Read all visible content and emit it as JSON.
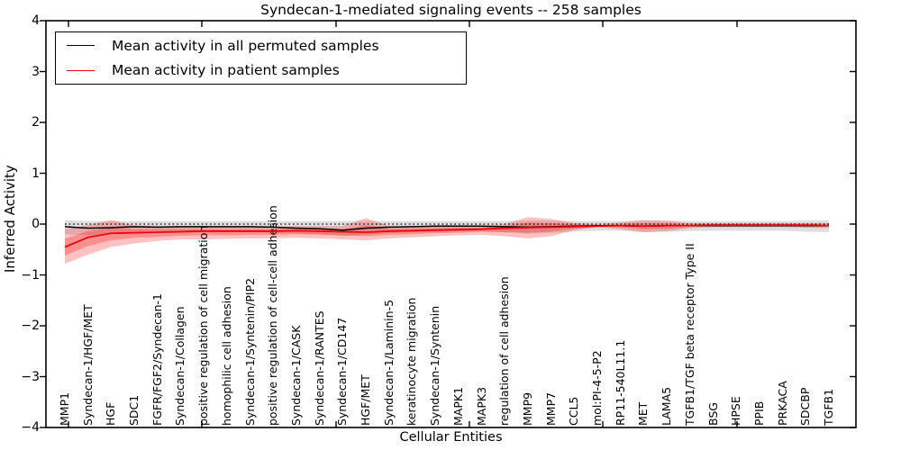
{
  "title": "Syndecan-1-mediated signaling events -- 258 samples",
  "legend": {
    "items": [
      {
        "label": "Mean activity in all permuted samples",
        "color": "#000000"
      },
      {
        "label": "Mean activity in patient samples",
        "color": "#ff0000"
      }
    ]
  },
  "axes": {
    "ylabel": "Inferred Activity",
    "xlabel": "Cellular Entities",
    "y_tick_labels": [
      "4",
      "3",
      "2",
      "1",
      "0",
      "−1",
      "−2",
      "−3",
      "−4"
    ],
    "y_tick_values": [
      4,
      3,
      2,
      1,
      0,
      -1,
      -2,
      -3,
      -4
    ]
  },
  "chart_data": {
    "type": "line",
    "title": "Syndecan-1-mediated signaling events -- 258 samples",
    "xlabel": "Cellular Entities",
    "ylabel": "Inferred Activity",
    "ylim": [
      -4,
      4
    ],
    "grid": false,
    "legend_position": "upper left",
    "reference_line": {
      "y": 0,
      "style": "dotted",
      "color": "#000000"
    },
    "categories": [
      "MMP1",
      "Syndecan-1/HGF/MET",
      "HGF",
      "SDC1",
      "FGFR/FGF2/Syndecan-1",
      "Syndecan-1/Collagen",
      "positive regulation of cell migration",
      "homophilic cell adhesion",
      "Syndecan-1/Syntenin/PIP2",
      "positive regulation of cell-cell adhesion",
      "Syndecan-1/CASK",
      "Syndecan-1/RANTES",
      "Syndecan-1/CD147",
      "HGF/MET",
      "Syndecan-1/Laminin-5",
      "keratinocyte migration",
      "Syndecan-1/Syntenin",
      "MAPK1",
      "MAPK3",
      "regulation of cell adhesion",
      "MMP9",
      "MMP7",
      "CCL5",
      "mol:PI-4-5-P2",
      "RP11-540L11.1",
      "MET",
      "LAMA5",
      "TGFB1/TGF beta receptor Type II",
      "BSG",
      "HPSE",
      "PPIB",
      "PRKACA",
      "SDCBP",
      "TGFB1"
    ],
    "series": [
      {
        "name": "Mean activity in all permuted samples",
        "color": "#000000",
        "values": [
          -0.05,
          -0.08,
          -0.07,
          -0.05,
          -0.06,
          -0.05,
          -0.05,
          -0.05,
          -0.05,
          -0.06,
          -0.08,
          -0.09,
          -0.12,
          -0.08,
          -0.06,
          -0.05,
          -0.04,
          -0.04,
          -0.04,
          -0.05,
          -0.06,
          -0.05,
          -0.04,
          -0.03,
          -0.03,
          -0.04,
          -0.03,
          -0.03,
          -0.03,
          -0.03,
          -0.03,
          -0.03,
          -0.03,
          -0.03
        ]
      },
      {
        "name": "Mean activity in patient samples",
        "color": "#ee0000",
        "values": [
          -0.45,
          -0.26,
          -0.18,
          -0.17,
          -0.16,
          -0.15,
          -0.14,
          -0.14,
          -0.14,
          -0.14,
          -0.13,
          -0.14,
          -0.15,
          -0.16,
          -0.14,
          -0.13,
          -0.12,
          -0.11,
          -0.1,
          -0.08,
          -0.07,
          -0.06,
          -0.05,
          -0.04,
          -0.03,
          -0.04,
          -0.03,
          -0.03,
          -0.02,
          -0.02,
          -0.02,
          -0.02,
          -0.02,
          -0.03
        ]
      }
    ],
    "bands": [
      {
        "name": "permuted-range",
        "fill": "rgba(0,0,0,0.13)",
        "upper": [
          0.08,
          0.06,
          0.06,
          0.06,
          0.06,
          0.06,
          0.06,
          0.06,
          0.06,
          0.06,
          0.06,
          0.06,
          0.06,
          0.06,
          0.06,
          0.06,
          0.06,
          0.06,
          0.06,
          0.06,
          0.07,
          0.07,
          0.06,
          0.06,
          0.06,
          0.07,
          0.07,
          0.06,
          0.06,
          0.06,
          0.06,
          0.06,
          0.07,
          0.07
        ],
        "lower": [
          -0.2,
          -0.22,
          -0.2,
          -0.17,
          -0.17,
          -0.16,
          -0.16,
          -0.16,
          -0.16,
          -0.17,
          -0.18,
          -0.2,
          -0.24,
          -0.21,
          -0.18,
          -0.16,
          -0.15,
          -0.14,
          -0.14,
          -0.16,
          -0.19,
          -0.17,
          -0.15,
          -0.13,
          -0.13,
          -0.16,
          -0.15,
          -0.14,
          -0.13,
          -0.13,
          -0.13,
          -0.13,
          -0.15,
          -0.16
        ]
      },
      {
        "name": "patient-range-outer",
        "fill": "rgba(255,0,0,0.24)",
        "upper": [
          -0.1,
          -0.02,
          0.08,
          -0.03,
          -0.04,
          -0.05,
          -0.05,
          -0.05,
          -0.05,
          -0.05,
          -0.04,
          -0.04,
          -0.04,
          0.12,
          -0.04,
          -0.05,
          -0.04,
          -0.04,
          -0.04,
          0.0,
          0.14,
          0.1,
          0.02,
          0.0,
          0.03,
          0.08,
          0.06,
          0.02,
          0.02,
          0.02,
          0.02,
          0.02,
          0.02,
          0.02
        ],
        "lower": [
          -0.78,
          -0.6,
          -0.45,
          -0.38,
          -0.33,
          -0.3,
          -0.3,
          -0.29,
          -0.28,
          -0.28,
          -0.27,
          -0.28,
          -0.3,
          -0.32,
          -0.28,
          -0.26,
          -0.24,
          -0.22,
          -0.21,
          -0.24,
          -0.28,
          -0.24,
          -0.12,
          -0.06,
          -0.1,
          -0.16,
          -0.14,
          -0.08,
          -0.06,
          -0.06,
          -0.06,
          -0.06,
          -0.07,
          -0.08
        ]
      },
      {
        "name": "patient-range-inner",
        "fill": "rgba(255,0,0,0.26)",
        "upper": [
          -0.28,
          -0.14,
          -0.05,
          -0.1,
          -0.1,
          -0.1,
          -0.1,
          -0.1,
          -0.1,
          -0.1,
          -0.09,
          -0.09,
          -0.1,
          -0.02,
          -0.09,
          -0.09,
          -0.08,
          -0.07,
          -0.07,
          -0.04,
          0.03,
          0.02,
          -0.01,
          -0.02,
          0.0,
          0.02,
          0.01,
          -0.01,
          0.0,
          0.0,
          0.0,
          0.0,
          0.0,
          -0.01
        ],
        "lower": [
          -0.62,
          -0.43,
          -0.32,
          -0.27,
          -0.25,
          -0.23,
          -0.22,
          -0.22,
          -0.21,
          -0.21,
          -0.2,
          -0.21,
          -0.22,
          -0.24,
          -0.21,
          -0.2,
          -0.18,
          -0.17,
          -0.15,
          -0.16,
          -0.17,
          -0.15,
          -0.09,
          -0.05,
          -0.06,
          -0.1,
          -0.09,
          -0.05,
          -0.04,
          -0.04,
          -0.04,
          -0.04,
          -0.05,
          -0.05
        ]
      }
    ]
  }
}
